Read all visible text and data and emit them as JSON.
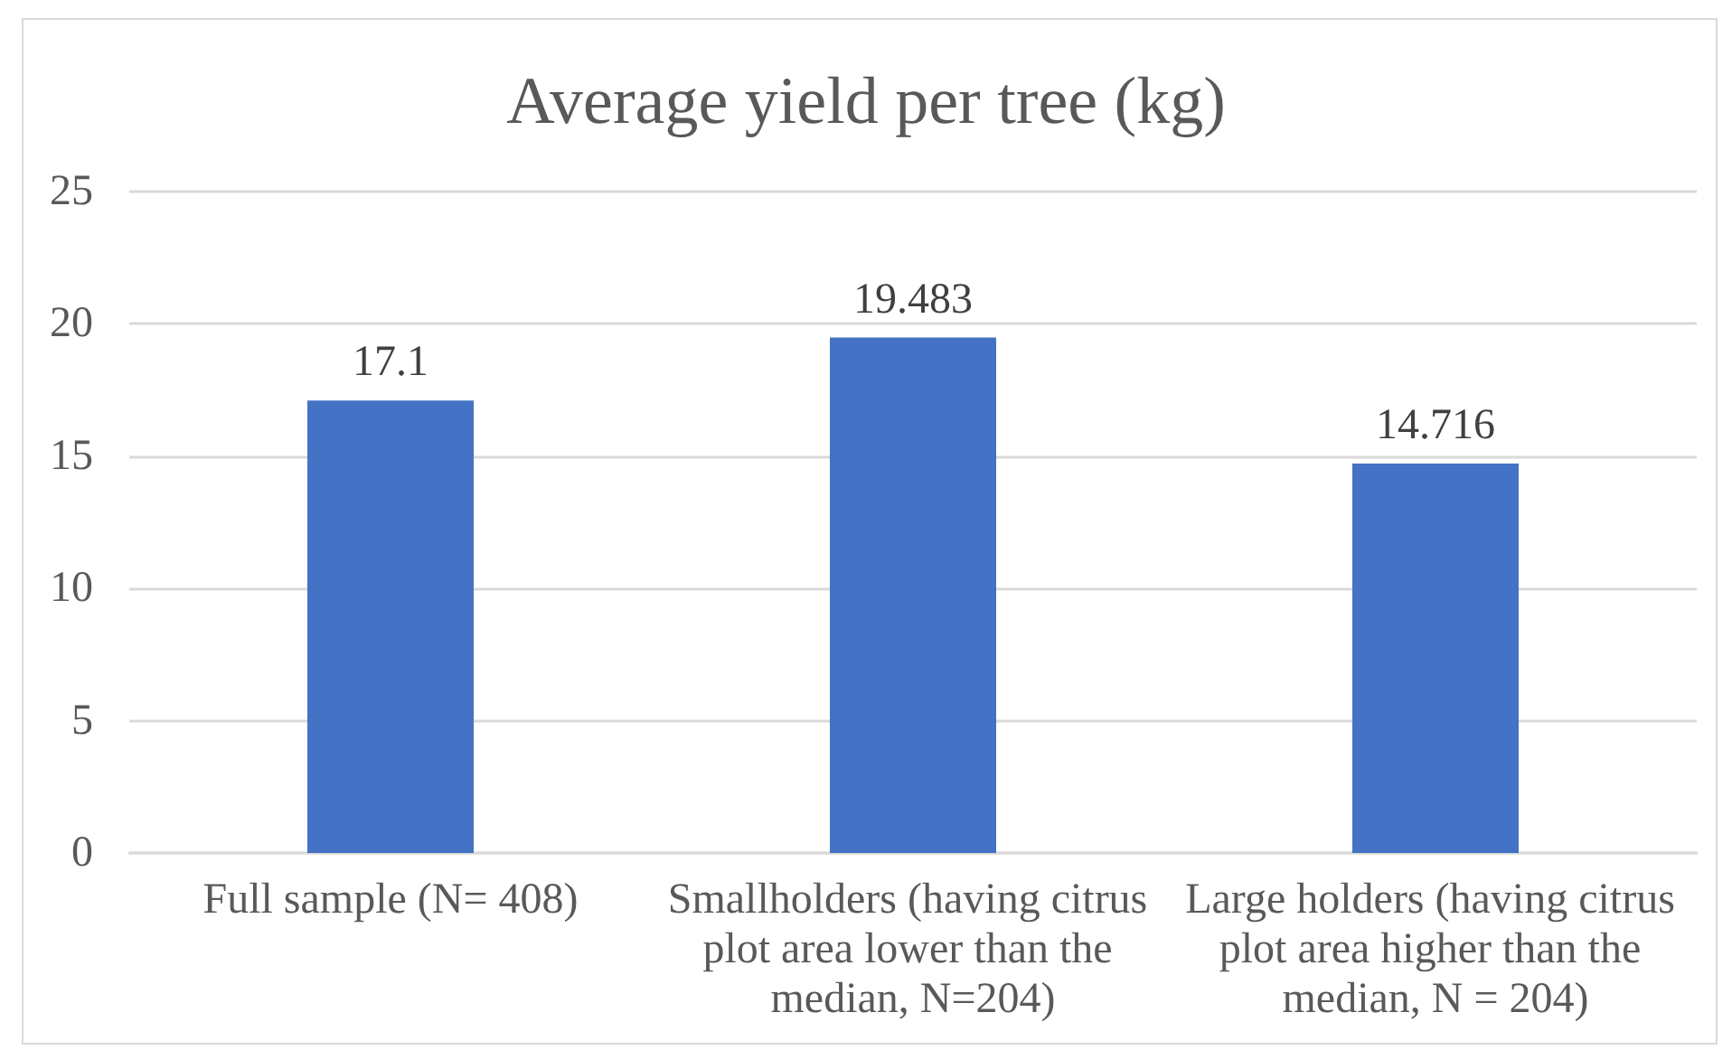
{
  "chart_data": {
    "type": "bar",
    "title": "Average yield per tree (kg)",
    "categories": [
      "Full sample (N= 408)",
      "Smallholders (having citrus plot area lower than the median, N=204)",
      "Large holders (having citrus plot area higher than the median, N = 204)"
    ],
    "values": [
      17.1,
      19.483,
      14.716
    ],
    "color": "#4472c4",
    "ylim": [
      0,
      25
    ],
    "yticks": [
      0,
      5,
      10,
      15,
      20,
      25
    ],
    "grid": "y",
    "data_labels": true
  }
}
